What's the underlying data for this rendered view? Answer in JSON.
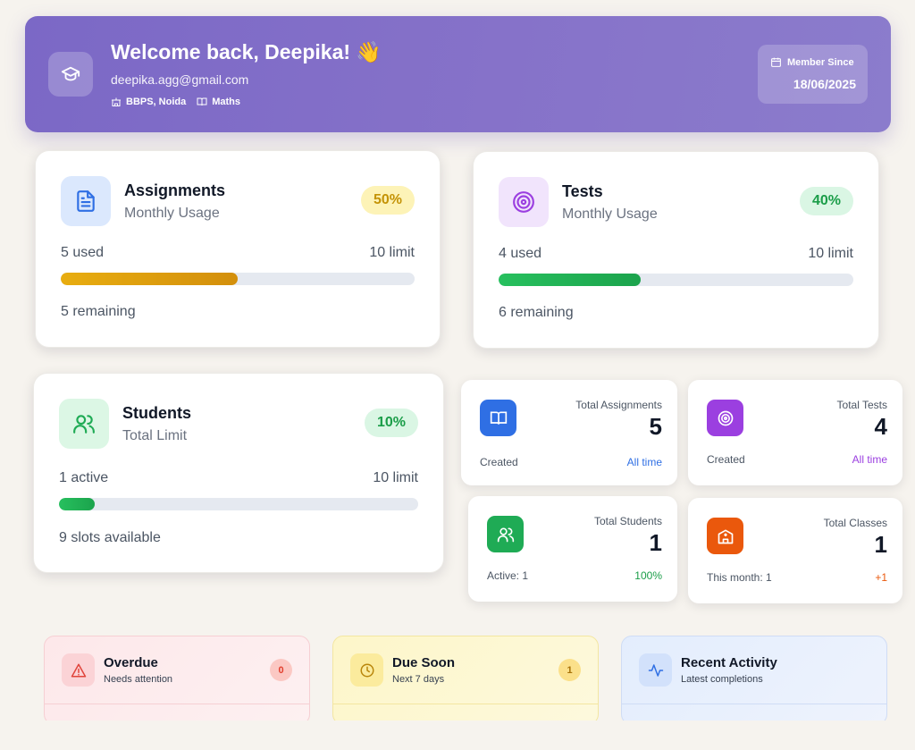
{
  "header": {
    "welcome": "Welcome back, Deepika! 👋",
    "email": "deepika.agg@gmail.com",
    "school": "BBPS, Noida",
    "subject": "Maths",
    "member_since_label": "Member Since",
    "member_since_value": "18/06/2025"
  },
  "usage": {
    "assignments": {
      "title": "Assignments",
      "subtitle": "Monthly Usage",
      "percent": "50%",
      "used": "5 used",
      "limit": "10 limit",
      "remaining": "5 remaining",
      "progress": 0.5
    },
    "tests": {
      "title": "Tests",
      "subtitle": "Monthly Usage",
      "percent": "40%",
      "used": "4 used",
      "limit": "10 limit",
      "remaining": "6 remaining",
      "progress": 0.4
    },
    "students": {
      "title": "Students",
      "subtitle": "Total Limit",
      "percent": "10%",
      "used": "1 active",
      "limit": "10 limit",
      "remaining": "9 slots available",
      "progress": 0.1
    }
  },
  "stats": {
    "assignments": {
      "label": "Total Assignments",
      "value": "5",
      "foot_left": "Created",
      "foot_right": "All time"
    },
    "tests": {
      "label": "Total Tests",
      "value": "4",
      "foot_left": "Created",
      "foot_right": "All time"
    },
    "students": {
      "label": "Total Students",
      "value": "1",
      "foot_left": "Active: 1",
      "foot_right": "100%"
    },
    "classes": {
      "label": "Total Classes",
      "value": "1",
      "foot_left": "This month: 1",
      "foot_right": "+1"
    }
  },
  "panels": {
    "overdue": {
      "title": "Overdue",
      "subtitle": "Needs attention",
      "count": "0"
    },
    "due_soon": {
      "title": "Due Soon",
      "subtitle": "Next 7 days",
      "count": "1"
    },
    "recent": {
      "title": "Recent Activity",
      "subtitle": "Latest completions"
    }
  },
  "colors": {
    "assignments_bar": "#e0a00e",
    "tests_bar": "#22b55a",
    "students_bar": "#22b55a"
  }
}
